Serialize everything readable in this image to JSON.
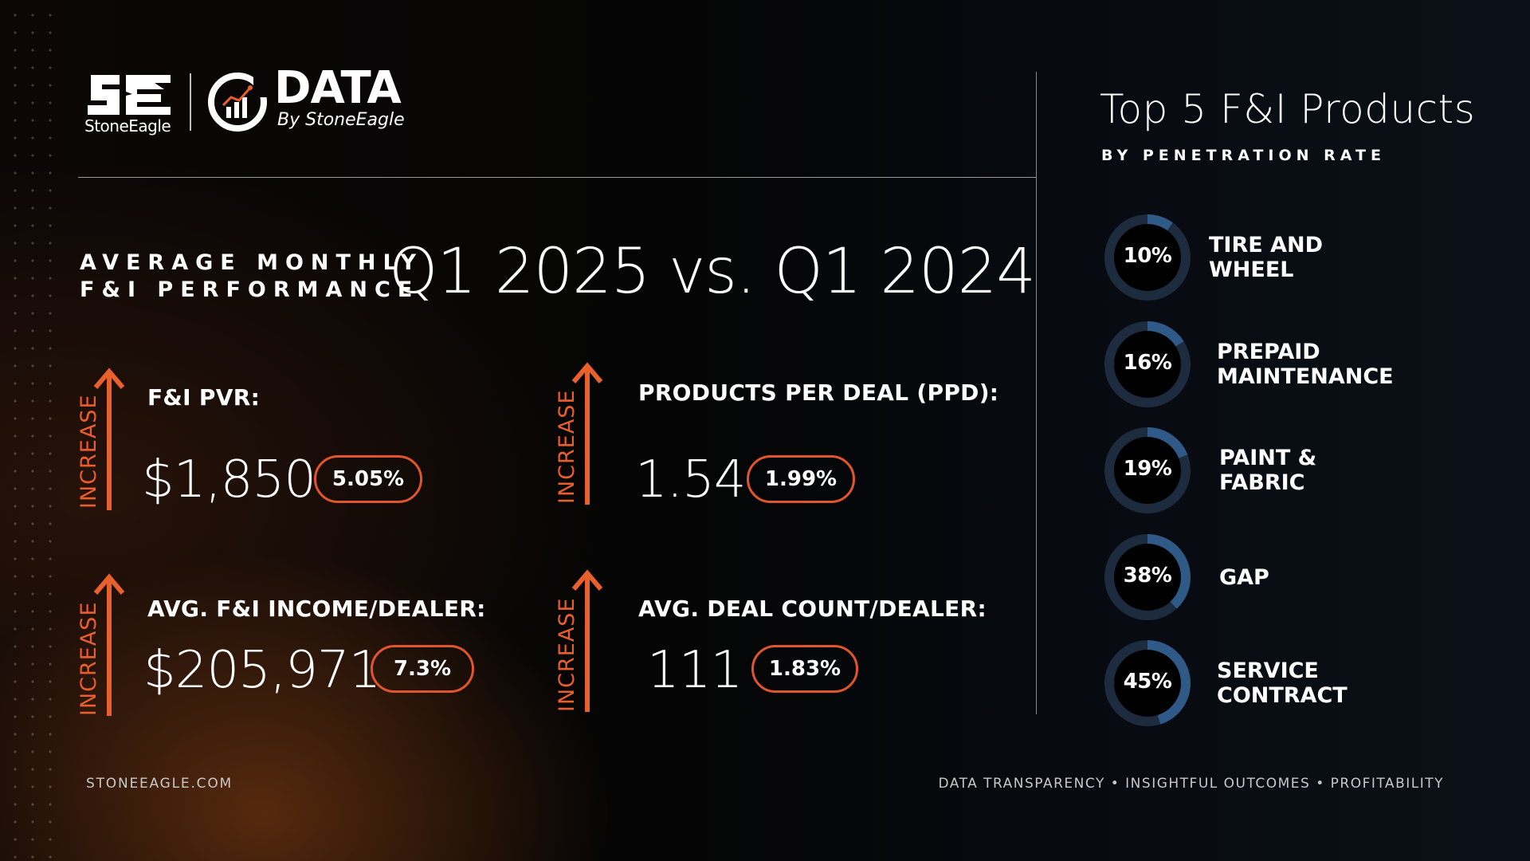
{
  "header": {
    "brand_name": "StoneEagle",
    "brand_mark_text": "SE",
    "data_logo_title": "DATA",
    "data_logo_sub": "By StoneEagle"
  },
  "headline": {
    "line1": "AVERAGE MONTHLY",
    "line2": "F&I PERFORMANCE",
    "comparison": "Q1 2025 vs. Q1 2024"
  },
  "metrics": [
    {
      "trend": "INCREASE",
      "label": "F&I PVR:",
      "value": "$1,850",
      "change": "5.05%"
    },
    {
      "trend": "INCREASE",
      "label": "PRODUCTS PER DEAL (PPD):",
      "value": "1.54",
      "change": "1.99%"
    },
    {
      "trend": "INCREASE",
      "label": "AVG. F&I INCOME/DEALER:",
      "value": "$205,971",
      "change": "7.3%"
    },
    {
      "trend": "INCREASE",
      "label": "AVG. DEAL COUNT/DEALER:",
      "value": "111",
      "change": "1.83%"
    }
  ],
  "products_panel": {
    "title": "Top 5 F&I Products",
    "subtitle": "BY PENETRATION RATE",
    "items": [
      {
        "percent_label": "10%",
        "rate": 0.1,
        "name_line1": "TIRE AND",
        "name_line2": "WHEEL"
      },
      {
        "percent_label": "16%",
        "rate": 0.16,
        "name_line1": "PREPAID",
        "name_line2": "MAINTENANCE"
      },
      {
        "percent_label": "19%",
        "rate": 0.19,
        "name_line1": "PAINT &",
        "name_line2": "FABRIC"
      },
      {
        "percent_label": "38%",
        "rate": 0.38,
        "name_line1": "GAP",
        "name_line2": ""
      },
      {
        "percent_label": "45%",
        "rate": 0.45,
        "name_line1": "SERVICE",
        "name_line2": "CONTRACT"
      }
    ]
  },
  "footer": {
    "website": "STONEEAGLE.COM",
    "tagline": "DATA TRANSPARENCY • INSIGHTFUL OUTCOMES • PROFITABILITY"
  },
  "colors": {
    "accent_orange": "#e8602c",
    "ring_track": "#1c2b3d",
    "ring_fill": "#2f5a88"
  }
}
